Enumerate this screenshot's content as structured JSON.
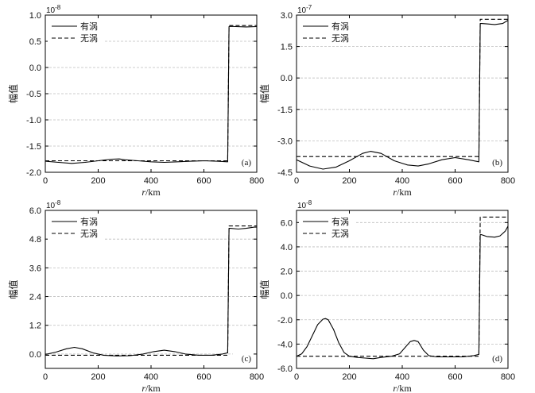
{
  "chart_data": [
    {
      "type": "line",
      "panel_label": "(a)",
      "multiplier": "10",
      "multiplier_exp": "-8",
      "xlabel_var": "r",
      "xlabel_unit": "/km",
      "ylabel": "幅值",
      "xlim": [
        0,
        800
      ],
      "ylim": [
        -2.0,
        1.0
      ],
      "xticks": [
        0,
        200,
        400,
        600,
        800
      ],
      "xtick_labels": [
        "0",
        "200",
        "400",
        "600",
        "800"
      ],
      "yticks": [
        -2.0,
        -1.5,
        -1.0,
        -0.5,
        0.0,
        0.5,
        1.0
      ],
      "ytick_labels": [
        "-2.0",
        "-1.5",
        "-1.0",
        "-0.5",
        "0.0",
        "0.5",
        "1.0"
      ],
      "grid": true,
      "legend_position": "top-left",
      "series": [
        {
          "name": "有涡",
          "style": "solid",
          "x": [
            0,
            50,
            100,
            150,
            200,
            250,
            280,
            300,
            350,
            400,
            450,
            500,
            550,
            600,
            650,
            690,
            695,
            700,
            720,
            760,
            800
          ],
          "y": [
            -1.79,
            -1.81,
            -1.83,
            -1.81,
            -1.78,
            -1.75,
            -1.745,
            -1.76,
            -1.78,
            -1.8,
            -1.81,
            -1.8,
            -1.79,
            -1.78,
            -1.79,
            -1.8,
            0.78,
            0.785,
            0.78,
            0.775,
            0.78
          ]
        },
        {
          "name": "无涡",
          "style": "dashed",
          "x": [
            0,
            690,
            695,
            800
          ],
          "y": [
            -1.78,
            -1.78,
            0.8,
            0.8
          ]
        }
      ]
    },
    {
      "type": "line",
      "panel_label": "(b)",
      "multiplier": "10",
      "multiplier_exp": "-7",
      "xlabel_var": "r",
      "xlabel_unit": "/km",
      "ylabel": "幅值",
      "xlim": [
        0,
        800
      ],
      "ylim": [
        -4.5,
        3.0
      ],
      "xticks": [
        0,
        200,
        400,
        600,
        800
      ],
      "xtick_labels": [
        "0",
        "200",
        "400",
        "600",
        "800"
      ],
      "yticks": [
        -4.5,
        -3.0,
        -1.5,
        0.0,
        1.5,
        3.0
      ],
      "ytick_labels": [
        "-4.5",
        "-3.0",
        "-1.5",
        "0.0",
        "1.5",
        "3.0"
      ],
      "grid": true,
      "legend_position": "top-left",
      "series": [
        {
          "name": "有涡",
          "style": "solid",
          "x": [
            0,
            50,
            100,
            150,
            200,
            250,
            280,
            320,
            370,
            420,
            460,
            500,
            550,
            600,
            650,
            690,
            695,
            700,
            720,
            750,
            780,
            800
          ],
          "y": [
            -3.9,
            -4.2,
            -4.35,
            -4.25,
            -3.95,
            -3.6,
            -3.5,
            -3.6,
            -3.95,
            -4.15,
            -4.2,
            -4.1,
            -3.9,
            -3.8,
            -3.9,
            -4.0,
            2.6,
            2.6,
            2.58,
            2.55,
            2.6,
            2.75
          ]
        },
        {
          "name": "无涡",
          "style": "dashed",
          "x": [
            0,
            690,
            695,
            800
          ],
          "y": [
            -3.75,
            -3.75,
            2.8,
            2.8
          ]
        }
      ]
    },
    {
      "type": "line",
      "panel_label": "(c)",
      "multiplier": "10",
      "multiplier_exp": "-8",
      "xlabel_var": "r",
      "xlabel_unit": "/km",
      "ylabel": "幅值",
      "xlim": [
        0,
        800
      ],
      "ylim": [
        -0.6,
        6.0
      ],
      "xticks": [
        0,
        200,
        400,
        600,
        800
      ],
      "xtick_labels": [
        "0",
        "200",
        "400",
        "600",
        "800"
      ],
      "yticks": [
        0.0,
        1.2,
        2.4,
        3.6,
        4.8,
        6.0
      ],
      "ytick_labels": [
        "0.0",
        "1.2",
        "2.4",
        "3.6",
        "4.8",
        "6.0"
      ],
      "grid": true,
      "legend_position": "top-left",
      "series": [
        {
          "name": "有涡",
          "style": "solid",
          "x": [
            0,
            40,
            80,
            110,
            140,
            180,
            220,
            270,
            320,
            370,
            410,
            450,
            490,
            530,
            580,
            630,
            670,
            690,
            695,
            700,
            730,
            760,
            790,
            800
          ],
          "y": [
            -0.02,
            0.08,
            0.22,
            0.28,
            0.22,
            0.05,
            -0.05,
            -0.08,
            -0.07,
            0.0,
            0.1,
            0.16,
            0.1,
            0.0,
            -0.05,
            -0.05,
            0.0,
            0.05,
            5.25,
            5.25,
            5.22,
            5.25,
            5.3,
            5.3
          ]
        },
        {
          "name": "无涡",
          "style": "dashed",
          "x": [
            0,
            690,
            695,
            800
          ],
          "y": [
            -0.05,
            -0.05,
            5.35,
            5.35
          ]
        }
      ]
    },
    {
      "type": "line",
      "panel_label": "(d)",
      "multiplier": "10",
      "multiplier_exp": "-8",
      "xlabel_var": "r",
      "xlabel_unit": "/km",
      "ylabel": "幅值",
      "xlim": [
        0,
        800
      ],
      "ylim": [
        -6.0,
        7.0
      ],
      "xticks": [
        0,
        200,
        400,
        600,
        800
      ],
      "xtick_labels": [
        "0",
        "200",
        "400",
        "600",
        "800"
      ],
      "yticks": [
        -6.0,
        -4.0,
        -2.0,
        0.0,
        2.0,
        4.0,
        6.0
      ],
      "ytick_labels": [
        "-6.0",
        "-4.0",
        "-2.0",
        "0.0",
        "2.0",
        "4.0",
        "6.0"
      ],
      "grid": true,
      "legend_position": "top-left",
      "series": [
        {
          "name": "有涡",
          "style": "solid",
          "x": [
            0,
            20,
            40,
            60,
            80,
            100,
            110,
            120,
            140,
            160,
            180,
            200,
            230,
            260,
            290,
            320,
            360,
            390,
            410,
            430,
            445,
            460,
            480,
            500,
            530,
            580,
            630,
            670,
            690,
            695,
            700,
            720,
            750,
            770,
            790,
            800
          ],
          "y": [
            -5.0,
            -4.8,
            -4.2,
            -3.3,
            -2.4,
            -1.95,
            -1.9,
            -2.0,
            -2.8,
            -3.9,
            -4.7,
            -5.0,
            -5.1,
            -5.15,
            -5.2,
            -5.1,
            -5.0,
            -4.8,
            -4.3,
            -3.8,
            -3.7,
            -3.8,
            -4.5,
            -4.95,
            -5.05,
            -5.05,
            -5.05,
            -4.95,
            -4.85,
            5.0,
            5.0,
            4.85,
            4.8,
            4.9,
            5.3,
            5.7
          ]
        },
        {
          "name": "无涡",
          "style": "dashed",
          "x": [
            0,
            690,
            695,
            800
          ],
          "y": [
            -5.0,
            -5.0,
            6.45,
            6.45
          ]
        }
      ]
    }
  ]
}
